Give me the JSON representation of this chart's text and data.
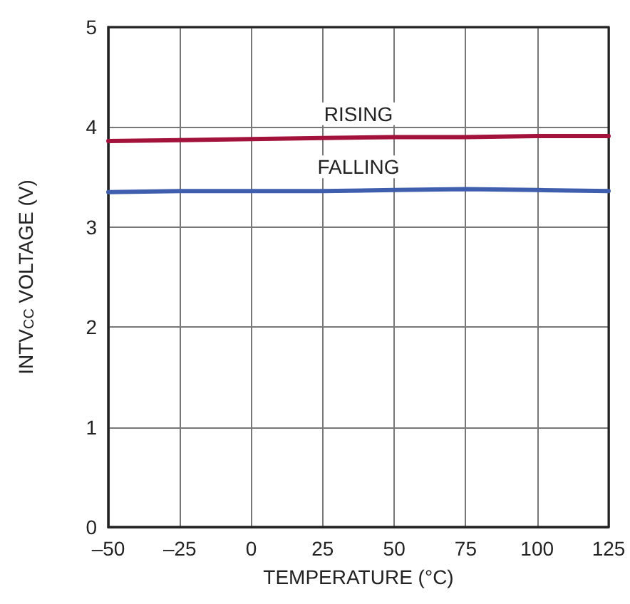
{
  "chart_data": {
    "type": "line",
    "xlabel": "TEMPERATURE (°C)",
    "ylabel": "INTV$_{CC}$ VOLTAGE (V)",
    "x": [
      -50,
      -25,
      0,
      25,
      50,
      75,
      100,
      125
    ],
    "series": [
      {
        "name": "RISING",
        "color": "#a3123b",
        "values": [
          3.86,
          3.87,
          3.88,
          3.89,
          3.9,
          3.9,
          3.91,
          3.91
        ]
      },
      {
        "name": "FALLING",
        "color": "#3f5fae",
        "values": [
          3.35,
          3.36,
          3.36,
          3.36,
          3.37,
          3.38,
          3.37,
          3.36
        ]
      }
    ],
    "xlim": [
      -50,
      125
    ],
    "xticks": [
      {
        "value": -50,
        "label": "–50"
      },
      {
        "value": -25,
        "label": "–25"
      },
      0,
      25,
      50,
      75,
      100,
      125
    ],
    "ylim": [
      0,
      5
    ],
    "yticks": [
      0,
      1,
      2,
      3,
      4,
      5
    ],
    "grid": true,
    "marker": "none",
    "line_style": "solid",
    "legend": false
  }
}
